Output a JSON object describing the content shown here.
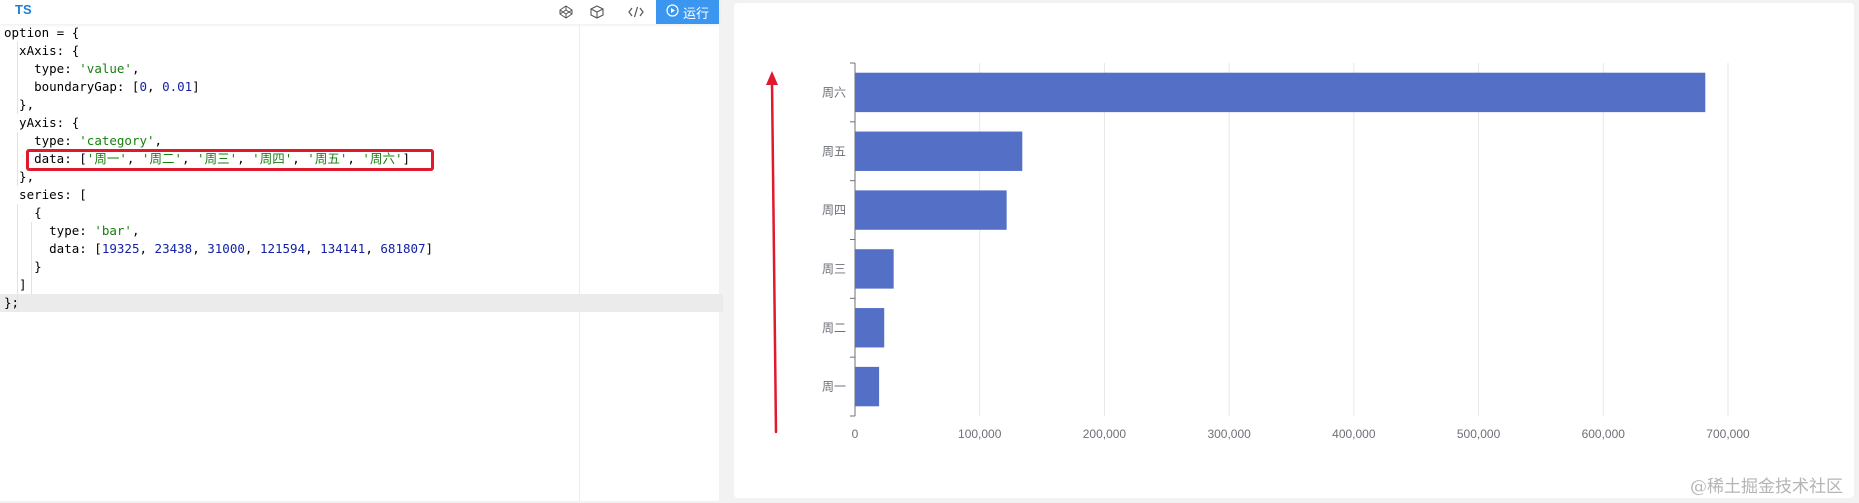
{
  "toolbar": {
    "lang_tab": "TS",
    "icons": [
      "codepen-icon",
      "codesandbox-icon",
      "code-embed-icon"
    ],
    "run_label": "运行"
  },
  "code": {
    "lines": [
      [
        {
          "t": "option = {"
        }
      ],
      [
        {
          "t": "  xAxis: {"
        }
      ],
      [
        {
          "t": "    type: "
        },
        {
          "t": "'value'",
          "c": "str"
        },
        {
          "t": ","
        }
      ],
      [
        {
          "t": "    boundaryGap: ["
        },
        {
          "t": "0",
          "c": "num"
        },
        {
          "t": ", "
        },
        {
          "t": "0.01",
          "c": "num"
        },
        {
          "t": "]"
        }
      ],
      [
        {
          "t": "  },"
        }
      ],
      [
        {
          "t": "  yAxis: {"
        }
      ],
      [
        {
          "t": "    type: "
        },
        {
          "t": "'category'",
          "c": "str"
        },
        {
          "t": ","
        }
      ],
      [
        {
          "t": "    data: ["
        },
        {
          "t": "'周一'",
          "c": "str"
        },
        {
          "t": ", "
        },
        {
          "t": "'周二'",
          "c": "str"
        },
        {
          "t": ", "
        },
        {
          "t": "'周三'",
          "c": "str"
        },
        {
          "t": ", "
        },
        {
          "t": "'周四'",
          "c": "str"
        },
        {
          "t": ", "
        },
        {
          "t": "'周五'",
          "c": "str"
        },
        {
          "t": ", "
        },
        {
          "t": "'周六'",
          "c": "str"
        },
        {
          "t": "]"
        }
      ],
      [
        {
          "t": "  },"
        }
      ],
      [
        {
          "t": "  series: ["
        }
      ],
      [
        {
          "t": "    {"
        }
      ],
      [
        {
          "t": "      type: "
        },
        {
          "t": "'bar'",
          "c": "str"
        },
        {
          "t": ","
        }
      ],
      [
        {
          "t": "      data: ["
        },
        {
          "t": "19325",
          "c": "num"
        },
        {
          "t": ", "
        },
        {
          "t": "23438",
          "c": "num"
        },
        {
          "t": ", "
        },
        {
          "t": "31000",
          "c": "num"
        },
        {
          "t": ", "
        },
        {
          "t": "121594",
          "c": "num"
        },
        {
          "t": ", "
        },
        {
          "t": "134141",
          "c": "num"
        },
        {
          "t": ", "
        },
        {
          "t": "681807",
          "c": "num"
        },
        {
          "t": "]"
        }
      ],
      [
        {
          "t": "    }"
        }
      ],
      [
        {
          "t": "  ]"
        }
      ],
      [
        {
          "t": "};"
        }
      ]
    ],
    "current_line": 15
  },
  "chart_data": {
    "type": "bar",
    "orientation": "horizontal",
    "categories": [
      "周一",
      "周二",
      "周三",
      "周四",
      "周五",
      "周六"
    ],
    "values": [
      19325,
      23438,
      31000,
      121594,
      134141,
      681807
    ],
    "xlim": [
      0,
      700000
    ],
    "xticks": [
      "0",
      "100,000",
      "200,000",
      "300,000",
      "400,000",
      "500,000",
      "600,000",
      "700,000"
    ],
    "bar_color": "#5470c6",
    "grid": true
  },
  "colors": {
    "highlight_box": "#e0192c",
    "arrow": "#e0192c",
    "run_button": "#3b96f0"
  },
  "watermark": "@稀土掘金技术社区"
}
